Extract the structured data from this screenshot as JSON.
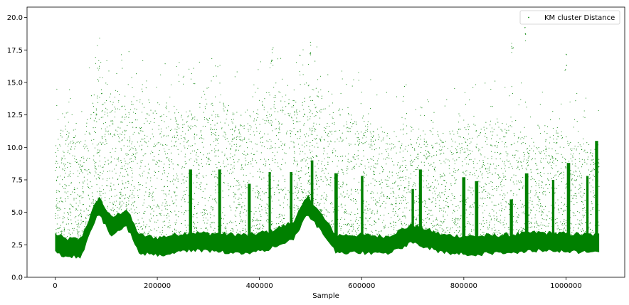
{
  "chart_data": {
    "type": "scatter",
    "title": "",
    "xlabel": "Sample",
    "ylabel": "",
    "xlim": [
      -55000,
      1115000
    ],
    "ylim": [
      0,
      20.8
    ],
    "x_ticks": [
      0,
      200000,
      400000,
      600000,
      800000,
      1000000
    ],
    "x_tick_labels": [
      "0",
      "200000",
      "400000",
      "600000",
      "800000",
      "1000000"
    ],
    "y_ticks": [
      0.0,
      2.5,
      5.0,
      7.5,
      10.0,
      12.5,
      15.0,
      17.5,
      20.0
    ],
    "y_tick_labels": [
      "0.0",
      "2.5",
      "5.0",
      "7.5",
      "10.0",
      "12.5",
      "15.0",
      "17.5",
      "20.0"
    ],
    "grid": false,
    "legend_position": "top-right",
    "series": [
      {
        "name": "KM cluster Distance",
        "color": "#008000",
        "marker": "point",
        "approx_point_count": 1065000,
        "x_range": [
          0,
          1065000
        ],
        "profile": [
          {
            "x": 0,
            "base": 2.6,
            "upper": 11.0
          },
          {
            "x": 20000,
            "base": 2.2,
            "upper": 12.0
          },
          {
            "x": 50000,
            "base": 2.2,
            "upper": 9.5
          },
          {
            "x": 85000,
            "base": 5.5,
            "upper": 15.0
          },
          {
            "x": 110000,
            "base": 3.8,
            "upper": 14.0
          },
          {
            "x": 140000,
            "base": 4.5,
            "upper": 13.5
          },
          {
            "x": 165000,
            "base": 2.5,
            "upper": 13.0
          },
          {
            "x": 200000,
            "base": 2.3,
            "upper": 13.0
          },
          {
            "x": 260000,
            "base": 2.7,
            "upper": 12.5
          },
          {
            "x": 320000,
            "base": 2.6,
            "upper": 13.0
          },
          {
            "x": 380000,
            "base": 2.5,
            "upper": 12.0
          },
          {
            "x": 420000,
            "base": 2.8,
            "upper": 14.0
          },
          {
            "x": 465000,
            "base": 3.5,
            "upper": 13.0
          },
          {
            "x": 495000,
            "base": 5.5,
            "upper": 14.5
          },
          {
            "x": 550000,
            "base": 2.5,
            "upper": 12.5
          },
          {
            "x": 600000,
            "base": 2.5,
            "upper": 12.0
          },
          {
            "x": 650000,
            "base": 2.4,
            "upper": 10.5
          },
          {
            "x": 700000,
            "base": 3.3,
            "upper": 11.0
          },
          {
            "x": 760000,
            "base": 2.5,
            "upper": 10.5
          },
          {
            "x": 820000,
            "base": 2.4,
            "upper": 11.5
          },
          {
            "x": 880000,
            "base": 2.5,
            "upper": 11.0
          },
          {
            "x": 940000,
            "base": 2.7,
            "upper": 11.0
          },
          {
            "x": 1000000,
            "base": 2.6,
            "upper": 10.5
          },
          {
            "x": 1065000,
            "base": 2.5,
            "upper": 9.5
          }
        ],
        "spikes": [
          {
            "x": 265000,
            "top": 8.3
          },
          {
            "x": 322000,
            "top": 8.3
          },
          {
            "x": 380000,
            "top": 7.2
          },
          {
            "x": 420000,
            "top": 8.1
          },
          {
            "x": 462000,
            "top": 8.1
          },
          {
            "x": 503000,
            "top": 9.0
          },
          {
            "x": 550000,
            "top": 8.0
          },
          {
            "x": 601000,
            "top": 7.8
          },
          {
            "x": 700000,
            "top": 6.8
          },
          {
            "x": 715000,
            "top": 8.3
          },
          {
            "x": 800000,
            "top": 7.7
          },
          {
            "x": 825000,
            "top": 7.4
          },
          {
            "x": 893000,
            "top": 6.0
          },
          {
            "x": 923000,
            "top": 8.0
          },
          {
            "x": 975000,
            "top": 7.5
          },
          {
            "x": 1005000,
            "top": 8.8
          },
          {
            "x": 1042000,
            "top": 7.8
          },
          {
            "x": 1060000,
            "top": 10.5
          }
        ],
        "notable_max_values": [
          {
            "x": 85000,
            "y": 16.5
          },
          {
            "x": 425000,
            "y": 17.8
          },
          {
            "x": 500000,
            "y": 18.5
          },
          {
            "x": 895000,
            "y": 18.5
          },
          {
            "x": 920000,
            "y": 19.4
          },
          {
            "x": 1000000,
            "y": 17.2
          }
        ]
      }
    ]
  }
}
